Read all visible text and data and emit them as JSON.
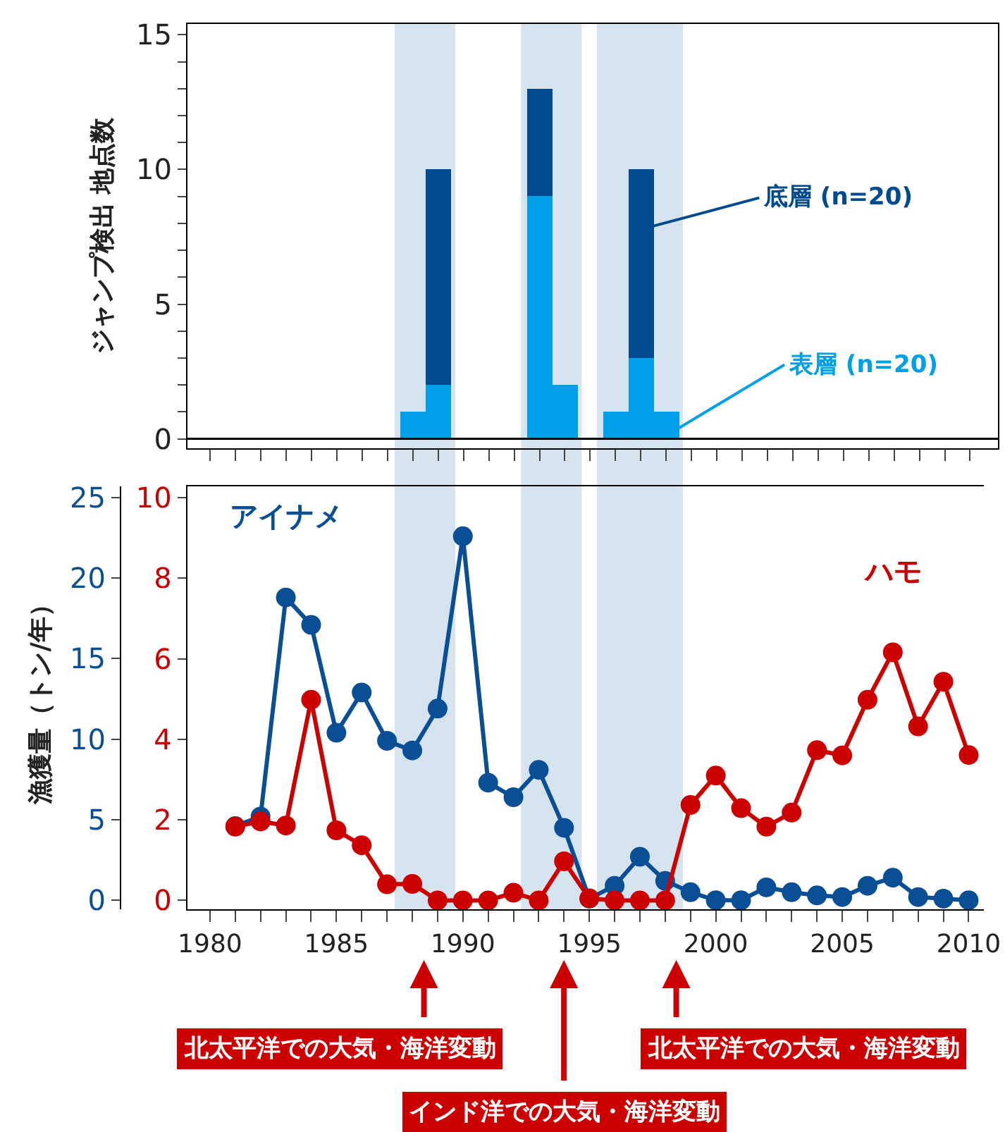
{
  "chart_data": [
    {
      "type": "bar",
      "stacked": true,
      "ylabel": "ジャンプ検出 地点数",
      "categories": [
        null,
        null,
        null,
        null,
        null,
        null,
        null,
        null,
        null,
        null,
        null,
        null,
        null,
        null,
        null,
        null,
        null,
        null,
        null,
        null,
        null,
        null,
        null,
        null,
        null,
        null,
        null,
        null,
        null,
        null,
        null
      ],
      "series": [
        {
          "name": "表層 (n=20)",
          "color": "#00a0e9",
          "values": [
            0,
            0,
            0,
            0,
            0,
            0,
            0,
            0,
            1,
            2,
            0,
            0,
            0,
            9,
            2,
            0,
            1,
            3,
            1,
            0,
            0,
            0,
            0,
            0,
            0,
            0,
            0,
            0,
            0,
            0,
            0
          ]
        },
        {
          "name": "底層 (n=20)",
          "color": "#004a8f",
          "values": [
            0,
            0,
            0,
            0,
            0,
            0,
            0,
            0,
            0,
            8,
            0,
            0,
            0,
            4,
            0,
            0,
            0,
            7,
            0,
            0,
            0,
            0,
            0,
            0,
            0,
            0,
            0,
            0,
            0,
            0,
            0
          ]
        }
      ],
      "ylim": [
        -0.35,
        15.4
      ],
      "yticks": [
        0,
        {
          "value": 1,
          "label": null
        },
        {
          "value": 2,
          "label": null
        },
        {
          "value": 3,
          "label": null
        },
        {
          "value": 4,
          "label": null
        },
        5,
        {
          "value": 6,
          "label": null
        },
        {
          "value": 7,
          "label": null
        },
        {
          "value": 8,
          "label": null
        },
        {
          "value": 9,
          "label": null
        },
        10,
        {
          "value": 11,
          "label": null
        },
        {
          "value": 12,
          "label": null
        },
        {
          "value": 13,
          "label": null
        },
        {
          "value": 14,
          "label": null
        },
        15
      ],
      "tick_labels": "y",
      "legend": "right",
      "grid": false,
      "ref_lines": [
        {
          "axis": "y",
          "value": 0,
          "color": "#000000"
        }
      ]
    },
    {
      "type": "line",
      "marker": "circle",
      "ylabel": "漁獲量（トン/年）",
      "x": [
        1981,
        1982,
        1983,
        1984,
        1985,
        1986,
        1987,
        1988,
        1989,
        1990,
        1991,
        1992,
        1993,
        1994,
        1995,
        1996,
        1997,
        1998,
        1999,
        2000,
        2001,
        2002,
        2003,
        2004,
        2005,
        2006,
        2007,
        2008,
        2009,
        2010
      ],
      "series": [
        {
          "name": "アイナメ",
          "color": "#0a4f96",
          "values": [
            4.6,
            5.2,
            18.8,
            17.1,
            10.4,
            12.9,
            9.9,
            9.3,
            11.9,
            22.6,
            7.3,
            6.4,
            8.1,
            4.5,
            0.1,
            0.9,
            2.7,
            1.2,
            0.5,
            0,
            0,
            0.8,
            0.5,
            0.3,
            0.2,
            0.9,
            1.4,
            0.2,
            0.1,
            0
          ]
        },
        {
          "name": "ハモ",
          "color": "#cc0000",
          "axis": "y2",
          "values": [
            1.83,
            1.96,
            1.86,
            4.98,
            1.74,
            1.37,
            0.4,
            0.41,
            0,
            0,
            0,
            0.19,
            0,
            0.97,
            0.05,
            0,
            0,
            0,
            2.37,
            3.1,
            2.29,
            1.83,
            2.18,
            3.73,
            3.6,
            4.98,
            6.16,
            4.32,
            5.43,
            3.61
          ]
        }
      ],
      "xlim": [
        1979.1,
        2010.6
      ],
      "ylim": [
        -0.56,
        25.7
      ],
      "y2lim": [
        -0.22,
        10.28
      ],
      "xticks": [
        1980,
        {
          "value": 1981,
          "label": null
        },
        {
          "value": 1982,
          "label": null
        },
        {
          "value": 1983,
          "label": null
        },
        {
          "value": 1984,
          "label": null
        },
        1985,
        {
          "value": 1986,
          "label": null
        },
        {
          "value": 1987,
          "label": null
        },
        {
          "value": 1988,
          "label": null
        },
        {
          "value": 1989,
          "label": null
        },
        1990,
        {
          "value": 1991,
          "label": null
        },
        {
          "value": 1992,
          "label": null
        },
        {
          "value": 1993,
          "label": null
        },
        {
          "value": 1994,
          "label": null
        },
        1995,
        {
          "value": 1996,
          "label": null
        },
        {
          "value": 1997,
          "label": null
        },
        {
          "value": 1998,
          "label": null
        },
        {
          "value": 1999,
          "label": null
        },
        2000,
        {
          "value": 2001,
          "label": null
        },
        {
          "value": 2002,
          "label": null
        },
        {
          "value": 2003,
          "label": null
        },
        {
          "value": 2004,
          "label": null
        },
        2005,
        {
          "value": 2006,
          "label": null
        },
        {
          "value": 2007,
          "label": null
        },
        {
          "value": 2008,
          "label": null
        },
        {
          "value": 2009,
          "label": null
        },
        2010
      ],
      "yticks": [
        0,
        5,
        10,
        15,
        20,
        25
      ],
      "y2ticks": [
        0,
        2,
        4,
        6,
        8,
        10
      ],
      "legend": false,
      "grid": false,
      "bands": [
        {
          "axis": "x",
          "from": 1987.3,
          "to": 1989.7,
          "color": "#d6e4f0"
        },
        {
          "axis": "x",
          "from": 1992.3,
          "to": 1994.7,
          "color": "#d6e4f0"
        },
        {
          "axis": "x",
          "from": 1995.3,
          "to": 1998.7,
          "color": "#d6e4f0"
        }
      ],
      "annotations": [
        "北太平洋での大気・海洋変動",
        "インド洋での大気・海洋変動",
        "北太平洋での大気・海洋変動"
      ]
    }
  ]
}
